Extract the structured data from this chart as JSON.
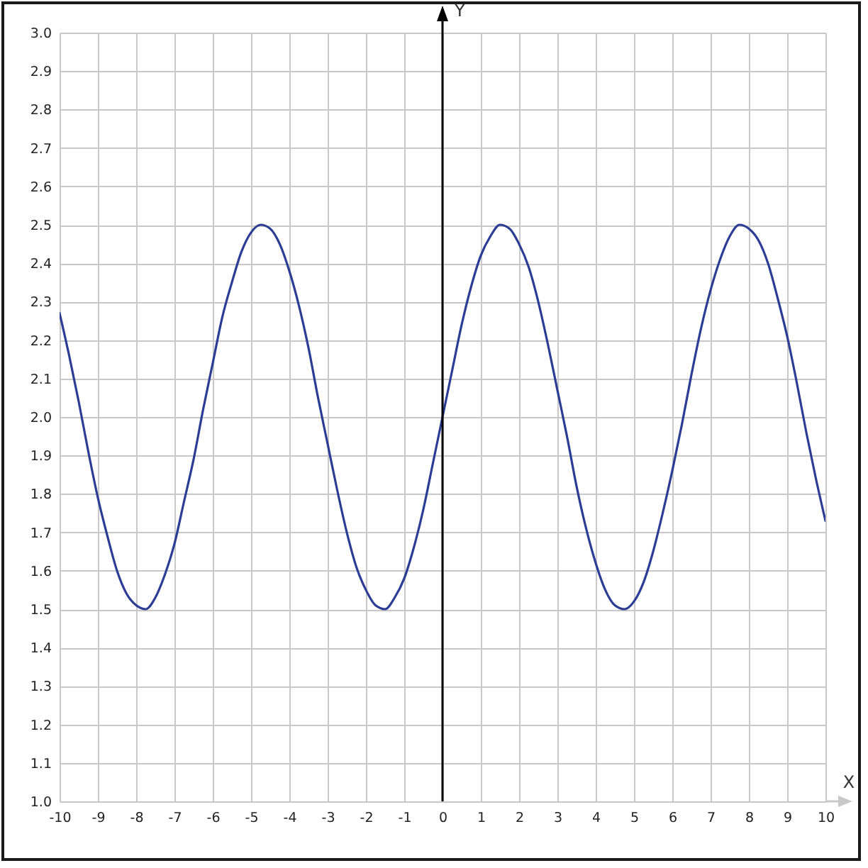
{
  "chart_data": {
    "type": "line",
    "xlabel": "X",
    "ylabel": "Y",
    "x": [
      -10,
      -9.75,
      -9.5,
      -9.25,
      -9,
      -8.75,
      -8.5,
      -8.25,
      -8,
      -7.75,
      -7.5,
      -7.25,
      -7,
      -6.75,
      -6.5,
      -6.25,
      -6,
      -5.75,
      -5.5,
      -5.25,
      -5,
      -4.75,
      -4.5,
      -4.25,
      -4,
      -3.75,
      -3.5,
      -3.25,
      -3,
      -2.75,
      -2.5,
      -2.25,
      -2,
      -1.75,
      -1.5,
      -1.25,
      -1,
      -0.75,
      -0.5,
      -0.25,
      0,
      0.25,
      0.5,
      0.75,
      1,
      1.25,
      1.5,
      1.75,
      2,
      2.25,
      2.5,
      2.75,
      3,
      3.25,
      3.5,
      3.75,
      4,
      4.25,
      4.5,
      4.75,
      5,
      5.25,
      5.5,
      5.75,
      6,
      6.25,
      6.5,
      6.75,
      7,
      7.25,
      7.5,
      7.75,
      8,
      8.25,
      8.5,
      8.75,
      9,
      9.25,
      9.5,
      9.75,
      10
    ],
    "series": [
      {
        "color": "#2b3d94",
        "values": [
          2.27,
          2.16,
          2.04,
          1.91,
          1.79,
          1.69,
          1.6,
          1.54,
          1.51,
          1.5,
          1.53,
          1.59,
          1.67,
          1.78,
          1.89,
          2.02,
          2.14,
          2.26,
          2.35,
          2.43,
          2.48,
          2.5,
          2.49,
          2.45,
          2.38,
          2.29,
          2.18,
          2.05,
          1.93,
          1.81,
          1.7,
          1.61,
          1.55,
          1.51,
          1.5,
          1.53,
          1.58,
          1.66,
          1.76,
          1.88,
          2.0,
          2.12,
          2.24,
          2.34,
          2.42,
          2.47,
          2.5,
          2.49,
          2.45,
          2.39,
          2.3,
          2.19,
          2.07,
          1.95,
          1.82,
          1.71,
          1.62,
          1.55,
          1.51,
          1.5,
          1.52,
          1.57,
          1.65,
          1.75,
          1.86,
          1.98,
          2.11,
          2.23,
          2.33,
          2.41,
          2.47,
          2.5,
          2.49,
          2.46,
          2.4,
          2.31,
          2.21,
          2.09,
          1.96,
          1.84,
          1.73
        ]
      }
    ],
    "xlim": [
      -10,
      10
    ],
    "ylim": [
      1,
      3
    ],
    "xticks": [
      -10,
      -9,
      -8,
      -7,
      -6,
      -5,
      -4,
      -3,
      -2,
      -1,
      0,
      1,
      2,
      3,
      4,
      5,
      6,
      7,
      8,
      9,
      10
    ],
    "yticks": [
      {
        "value": 1,
        "label": "1.0"
      },
      1.1,
      1.2,
      1.3,
      1.4,
      1.5,
      1.6,
      1.7,
      1.8,
      1.9,
      {
        "value": 2,
        "label": "2.0"
      },
      2.1,
      2.2,
      2.3,
      2.4,
      2.5,
      2.6,
      2.7,
      2.8,
      2.9,
      {
        "value": 3,
        "label": "3.0"
      }
    ],
    "grid": true,
    "ref_lines": [
      {
        "axis": "x",
        "value": 0,
        "color": "#000000"
      }
    ]
  }
}
